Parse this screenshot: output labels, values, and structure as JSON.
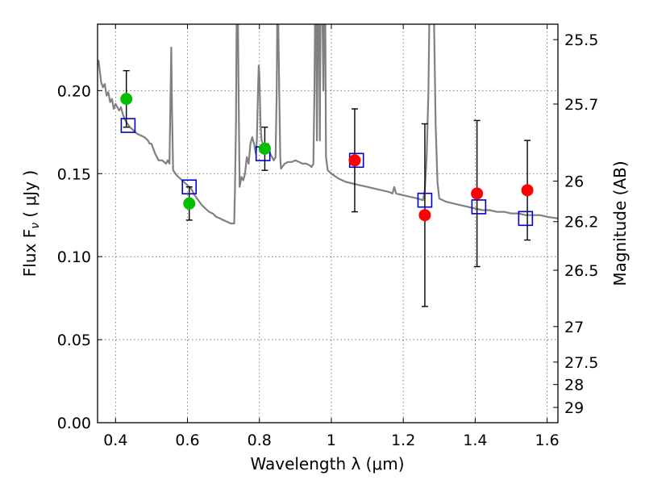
{
  "chart_data": {
    "type": "scatter",
    "xlabel": "Wavelength  λ (μm)",
    "ylabel": "Flux  F",
    "ylabel_sub": "ν",
    "ylabel_unit": " ( μJy )",
    "ylabel_right": "Magnitude (AB)",
    "xlim": [
      0.35,
      1.63
    ],
    "ylim": [
      0.0,
      0.24
    ],
    "grid": true,
    "x_ticks": [
      0.4,
      0.6,
      0.8,
      1.0,
      1.2,
      1.4,
      1.6
    ],
    "x_tick_labels": [
      "0.4",
      "0.6",
      "0.8",
      "1",
      "1.2",
      "1.4",
      "1.6"
    ],
    "y_ticks": [
      0.0,
      0.05,
      0.1,
      0.15,
      0.2
    ],
    "y_tick_labels": [
      "0.00",
      "0.05",
      "0.10",
      "0.15",
      "0.20"
    ],
    "right_ticks": [
      {
        "label": "25.5",
        "flux": 0.2307
      },
      {
        "label": "25.7",
        "flux": 0.1919
      },
      {
        "label": "26",
        "flux": 0.1455
      },
      {
        "label": "26.2",
        "flux": 0.1211
      },
      {
        "label": "26.5",
        "flux": 0.0918
      },
      {
        "label": "27",
        "flux": 0.0579
      },
      {
        "label": "27.5",
        "flux": 0.0365
      },
      {
        "label": "28",
        "flux": 0.023
      },
      {
        "label": "29",
        "flux": 0.0092
      }
    ],
    "colors": {
      "model": "#808080",
      "filled_green": "#00c000",
      "filled_red": "#ff0000",
      "open_square": "#0000cc",
      "errorbar": "#000000"
    },
    "model_spectrum": [
      [
        0.35,
        0.215
      ],
      [
        0.353,
        0.218
      ],
      [
        0.356,
        0.212
      ],
      [
        0.36,
        0.205
      ],
      [
        0.365,
        0.202
      ],
      [
        0.37,
        0.204
      ],
      [
        0.375,
        0.197
      ],
      [
        0.38,
        0.199
      ],
      [
        0.385,
        0.193
      ],
      [
        0.39,
        0.195
      ],
      [
        0.395,
        0.189
      ],
      [
        0.4,
        0.192
      ],
      [
        0.405,
        0.19
      ],
      [
        0.41,
        0.188
      ],
      [
        0.415,
        0.19
      ],
      [
        0.42,
        0.186
      ],
      [
        0.425,
        0.183
      ],
      [
        0.43,
        0.181
      ],
      [
        0.44,
        0.178
      ],
      [
        0.45,
        0.176
      ],
      [
        0.46,
        0.174
      ],
      [
        0.47,
        0.173
      ],
      [
        0.48,
        0.172
      ],
      [
        0.49,
        0.17
      ],
      [
        0.495,
        0.168
      ],
      [
        0.5,
        0.168
      ],
      [
        0.51,
        0.162
      ],
      [
        0.52,
        0.158
      ],
      [
        0.53,
        0.158
      ],
      [
        0.54,
        0.156
      ],
      [
        0.545,
        0.158
      ],
      [
        0.55,
        0.156
      ],
      [
        0.553,
        0.2
      ],
      [
        0.555,
        0.226
      ],
      [
        0.557,
        0.19
      ],
      [
        0.56,
        0.152
      ],
      [
        0.57,
        0.149
      ],
      [
        0.58,
        0.147
      ],
      [
        0.59,
        0.145
      ],
      [
        0.6,
        0.143
      ],
      [
        0.61,
        0.141
      ],
      [
        0.62,
        0.137
      ],
      [
        0.63,
        0.134
      ],
      [
        0.64,
        0.131
      ],
      [
        0.65,
        0.129
      ],
      [
        0.66,
        0.127
      ],
      [
        0.67,
        0.126
      ],
      [
        0.68,
        0.124
      ],
      [
        0.69,
        0.123
      ],
      [
        0.7,
        0.122
      ],
      [
        0.71,
        0.121
      ],
      [
        0.72,
        0.12
      ],
      [
        0.73,
        0.12
      ],
      [
        0.732,
        0.14
      ],
      [
        0.735,
        0.18
      ],
      [
        0.737,
        0.25
      ],
      [
        0.74,
        0.25
      ],
      [
        0.742,
        0.2
      ],
      [
        0.745,
        0.142
      ],
      [
        0.75,
        0.148
      ],
      [
        0.755,
        0.146
      ],
      [
        0.76,
        0.15
      ],
      [
        0.765,
        0.16
      ],
      [
        0.77,
        0.156
      ],
      [
        0.775,
        0.168
      ],
      [
        0.78,
        0.172
      ],
      [
        0.785,
        0.168
      ],
      [
        0.79,
        0.162
      ],
      [
        0.793,
        0.17
      ],
      [
        0.796,
        0.2
      ],
      [
        0.798,
        0.215
      ],
      [
        0.8,
        0.21
      ],
      [
        0.803,
        0.18
      ],
      [
        0.806,
        0.17
      ],
      [
        0.81,
        0.168
      ],
      [
        0.815,
        0.166
      ],
      [
        0.82,
        0.165
      ],
      [
        0.825,
        0.168
      ],
      [
        0.83,
        0.162
      ],
      [
        0.835,
        0.16
      ],
      [
        0.84,
        0.158
      ],
      [
        0.845,
        0.16
      ],
      [
        0.848,
        0.2
      ],
      [
        0.85,
        0.25
      ],
      [
        0.852,
        0.25
      ],
      [
        0.855,
        0.2
      ],
      [
        0.858,
        0.16
      ],
      [
        0.86,
        0.153
      ],
      [
        0.87,
        0.156
      ],
      [
        0.88,
        0.157
      ],
      [
        0.89,
        0.157
      ],
      [
        0.9,
        0.158
      ],
      [
        0.91,
        0.157
      ],
      [
        0.92,
        0.156
      ],
      [
        0.93,
        0.156
      ],
      [
        0.94,
        0.155
      ],
      [
        0.945,
        0.154
      ],
      [
        0.95,
        0.156
      ],
      [
        0.953,
        0.2
      ],
      [
        0.955,
        0.25
      ],
      [
        0.958,
        0.25
      ],
      [
        0.96,
        0.17
      ],
      [
        0.963,
        0.25
      ],
      [
        0.966,
        0.25
      ],
      [
        0.968,
        0.17
      ],
      [
        0.97,
        0.25
      ],
      [
        0.975,
        0.25
      ],
      [
        0.978,
        0.2
      ],
      [
        0.98,
        0.25
      ],
      [
        0.983,
        0.25
      ],
      [
        0.985,
        0.16
      ],
      [
        0.99,
        0.152
      ],
      [
        1.0,
        0.15
      ],
      [
        1.02,
        0.147
      ],
      [
        1.04,
        0.145
      ],
      [
        1.06,
        0.144
      ],
      [
        1.08,
        0.143
      ],
      [
        1.1,
        0.142
      ],
      [
        1.12,
        0.141
      ],
      [
        1.14,
        0.14
      ],
      [
        1.16,
        0.139
      ],
      [
        1.17,
        0.138
      ],
      [
        1.175,
        0.142
      ],
      [
        1.18,
        0.138
      ],
      [
        1.2,
        0.137
      ],
      [
        1.22,
        0.136
      ],
      [
        1.24,
        0.135
      ],
      [
        1.255,
        0.134
      ],
      [
        1.26,
        0.14
      ],
      [
        1.265,
        0.16
      ],
      [
        1.27,
        0.2
      ],
      [
        1.273,
        0.25
      ],
      [
        1.285,
        0.25
      ],
      [
        1.29,
        0.18
      ],
      [
        1.295,
        0.145
      ],
      [
        1.3,
        0.135
      ],
      [
        1.32,
        0.133
      ],
      [
        1.34,
        0.132
      ],
      [
        1.36,
        0.131
      ],
      [
        1.38,
        0.13
      ],
      [
        1.4,
        0.129
      ],
      [
        1.42,
        0.128
      ],
      [
        1.44,
        0.128
      ],
      [
        1.46,
        0.127
      ],
      [
        1.48,
        0.127
      ],
      [
        1.5,
        0.126
      ],
      [
        1.52,
        0.126
      ],
      [
        1.54,
        0.125
      ],
      [
        1.56,
        0.125
      ],
      [
        1.58,
        0.125
      ],
      [
        1.6,
        0.124
      ],
      [
        1.63,
        0.123
      ]
    ],
    "filled_points": [
      {
        "x": 0.43,
        "y": 0.195,
        "yerr": 0.017,
        "color": "green"
      },
      {
        "x": 0.605,
        "y": 0.132,
        "yerr": 0.01,
        "color": "green"
      },
      {
        "x": 0.815,
        "y": 0.165,
        "yerr": 0.013,
        "color": "green"
      },
      {
        "x": 1.065,
        "y": 0.158,
        "yerr": 0.031,
        "color": "red"
      },
      {
        "x": 1.26,
        "y": 0.125,
        "yerr": 0.055,
        "color": "red"
      },
      {
        "x": 1.405,
        "y": 0.138,
        "yerr": 0.044,
        "color": "red"
      },
      {
        "x": 1.545,
        "y": 0.14,
        "yerr": 0.03,
        "color": "red"
      }
    ],
    "open_squares": [
      {
        "x": 0.435,
        "y": 0.179
      },
      {
        "x": 0.605,
        "y": 0.142
      },
      {
        "x": 0.81,
        "y": 0.162
      },
      {
        "x": 1.07,
        "y": 0.158
      },
      {
        "x": 1.26,
        "y": 0.134
      },
      {
        "x": 1.41,
        "y": 0.13
      },
      {
        "x": 1.54,
        "y": 0.123
      }
    ]
  }
}
